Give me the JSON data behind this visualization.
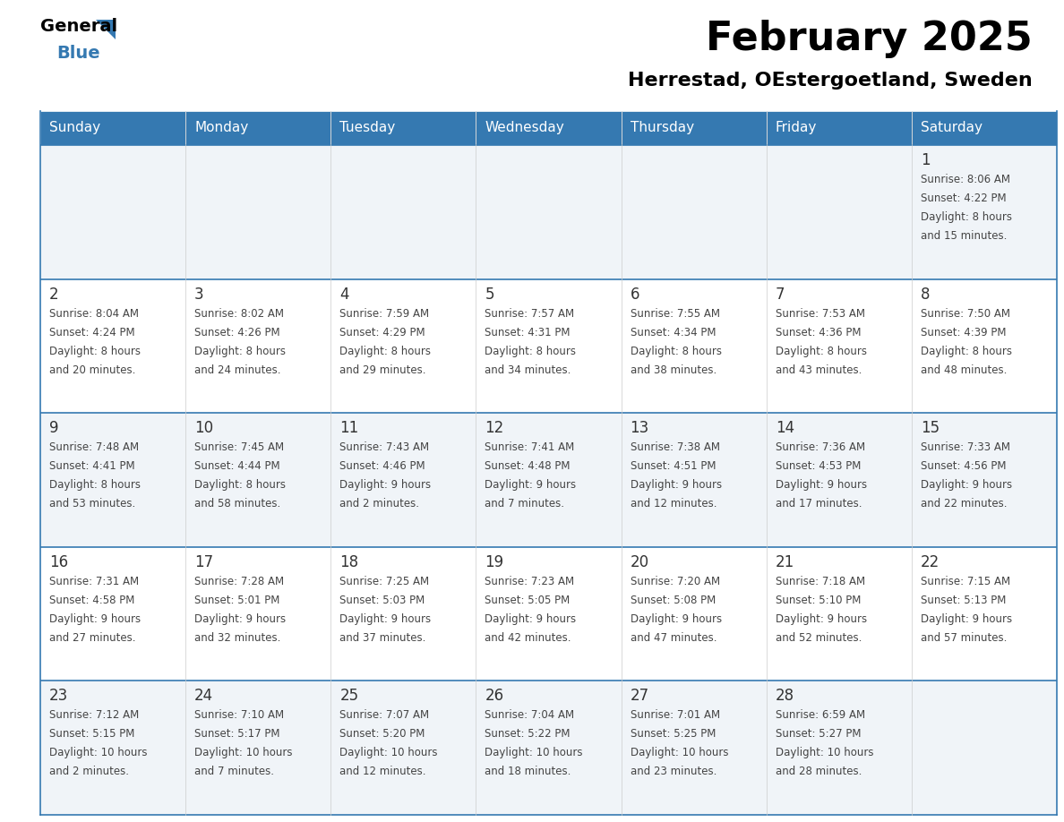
{
  "title": "February 2025",
  "subtitle": "Herrestad, OEstergoetland, Sweden",
  "header_color": "#3579B1",
  "header_text_color": "#FFFFFF",
  "cell_bg_color": "#FFFFFF",
  "alt_cell_bg_color": "#F0F4F8",
  "border_color": "#3579B1",
  "day_names": [
    "Sunday",
    "Monday",
    "Tuesday",
    "Wednesday",
    "Thursday",
    "Friday",
    "Saturday"
  ],
  "weeks": [
    [
      {
        "day": "",
        "sunrise": "",
        "sunset": "",
        "daylight": ""
      },
      {
        "day": "",
        "sunrise": "",
        "sunset": "",
        "daylight": ""
      },
      {
        "day": "",
        "sunrise": "",
        "sunset": "",
        "daylight": ""
      },
      {
        "day": "",
        "sunrise": "",
        "sunset": "",
        "daylight": ""
      },
      {
        "day": "",
        "sunrise": "",
        "sunset": "",
        "daylight": ""
      },
      {
        "day": "",
        "sunrise": "",
        "sunset": "",
        "daylight": ""
      },
      {
        "day": "1",
        "sunrise": "8:06 AM",
        "sunset": "4:22 PM",
        "daylight": "8 hours\nand 15 minutes."
      }
    ],
    [
      {
        "day": "2",
        "sunrise": "8:04 AM",
        "sunset": "4:24 PM",
        "daylight": "8 hours\nand 20 minutes."
      },
      {
        "day": "3",
        "sunrise": "8:02 AM",
        "sunset": "4:26 PM",
        "daylight": "8 hours\nand 24 minutes."
      },
      {
        "day": "4",
        "sunrise": "7:59 AM",
        "sunset": "4:29 PM",
        "daylight": "8 hours\nand 29 minutes."
      },
      {
        "day": "5",
        "sunrise": "7:57 AM",
        "sunset": "4:31 PM",
        "daylight": "8 hours\nand 34 minutes."
      },
      {
        "day": "6",
        "sunrise": "7:55 AM",
        "sunset": "4:34 PM",
        "daylight": "8 hours\nand 38 minutes."
      },
      {
        "day": "7",
        "sunrise": "7:53 AM",
        "sunset": "4:36 PM",
        "daylight": "8 hours\nand 43 minutes."
      },
      {
        "day": "8",
        "sunrise": "7:50 AM",
        "sunset": "4:39 PM",
        "daylight": "8 hours\nand 48 minutes."
      }
    ],
    [
      {
        "day": "9",
        "sunrise": "7:48 AM",
        "sunset": "4:41 PM",
        "daylight": "8 hours\nand 53 minutes."
      },
      {
        "day": "10",
        "sunrise": "7:45 AM",
        "sunset": "4:44 PM",
        "daylight": "8 hours\nand 58 minutes."
      },
      {
        "day": "11",
        "sunrise": "7:43 AM",
        "sunset": "4:46 PM",
        "daylight": "9 hours\nand 2 minutes."
      },
      {
        "day": "12",
        "sunrise": "7:41 AM",
        "sunset": "4:48 PM",
        "daylight": "9 hours\nand 7 minutes."
      },
      {
        "day": "13",
        "sunrise": "7:38 AM",
        "sunset": "4:51 PM",
        "daylight": "9 hours\nand 12 minutes."
      },
      {
        "day": "14",
        "sunrise": "7:36 AM",
        "sunset": "4:53 PM",
        "daylight": "9 hours\nand 17 minutes."
      },
      {
        "day": "15",
        "sunrise": "7:33 AM",
        "sunset": "4:56 PM",
        "daylight": "9 hours\nand 22 minutes."
      }
    ],
    [
      {
        "day": "16",
        "sunrise": "7:31 AM",
        "sunset": "4:58 PM",
        "daylight": "9 hours\nand 27 minutes."
      },
      {
        "day": "17",
        "sunrise": "7:28 AM",
        "sunset": "5:01 PM",
        "daylight": "9 hours\nand 32 minutes."
      },
      {
        "day": "18",
        "sunrise": "7:25 AM",
        "sunset": "5:03 PM",
        "daylight": "9 hours\nand 37 minutes."
      },
      {
        "day": "19",
        "sunrise": "7:23 AM",
        "sunset": "5:05 PM",
        "daylight": "9 hours\nand 42 minutes."
      },
      {
        "day": "20",
        "sunrise": "7:20 AM",
        "sunset": "5:08 PM",
        "daylight": "9 hours\nand 47 minutes."
      },
      {
        "day": "21",
        "sunrise": "7:18 AM",
        "sunset": "5:10 PM",
        "daylight": "9 hours\nand 52 minutes."
      },
      {
        "day": "22",
        "sunrise": "7:15 AM",
        "sunset": "5:13 PM",
        "daylight": "9 hours\nand 57 minutes."
      }
    ],
    [
      {
        "day": "23",
        "sunrise": "7:12 AM",
        "sunset": "5:15 PM",
        "daylight": "10 hours\nand 2 minutes."
      },
      {
        "day": "24",
        "sunrise": "7:10 AM",
        "sunset": "5:17 PM",
        "daylight": "10 hours\nand 7 minutes."
      },
      {
        "day": "25",
        "sunrise": "7:07 AM",
        "sunset": "5:20 PM",
        "daylight": "10 hours\nand 12 minutes."
      },
      {
        "day": "26",
        "sunrise": "7:04 AM",
        "sunset": "5:22 PM",
        "daylight": "10 hours\nand 18 minutes."
      },
      {
        "day": "27",
        "sunrise": "7:01 AM",
        "sunset": "5:25 PM",
        "daylight": "10 hours\nand 23 minutes."
      },
      {
        "day": "28",
        "sunrise": "6:59 AM",
        "sunset": "5:27 PM",
        "daylight": "10 hours\nand 28 minutes."
      },
      {
        "day": "",
        "sunrise": "",
        "sunset": "",
        "daylight": ""
      }
    ]
  ],
  "logo_text_general": "General",
  "logo_text_blue": "Blue"
}
